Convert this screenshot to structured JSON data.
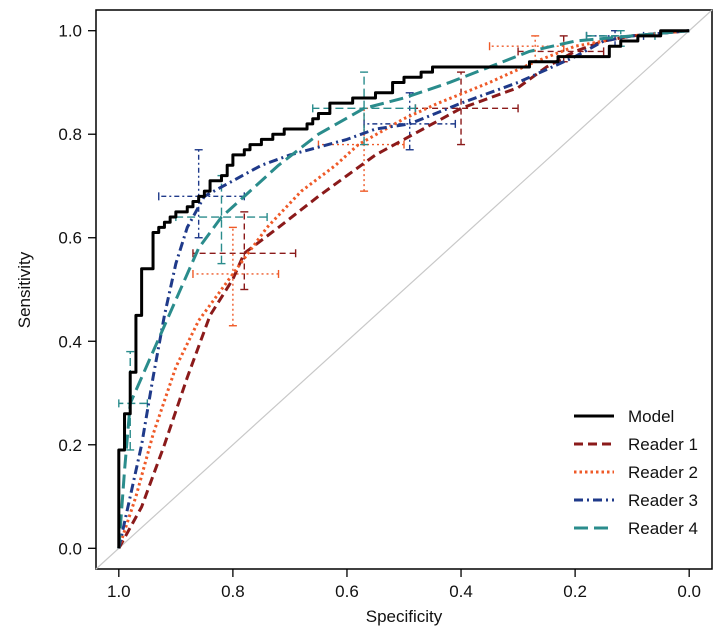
{
  "chart_data": {
    "type": "line",
    "title": "",
    "xlabel": "Specificity",
    "ylabel": "Sensitivity",
    "xlim": [
      1.04,
      -0.04
    ],
    "ylim": [
      -0.04,
      1.04
    ],
    "x_reversed": true,
    "xticks": [
      1.0,
      0.8,
      0.6,
      0.4,
      0.2,
      0.0
    ],
    "xtick_labels": [
      "1.0",
      "0.8",
      "0.6",
      "0.4",
      "0.2",
      "0.0"
    ],
    "yticks": [
      0.0,
      0.2,
      0.4,
      0.6,
      0.8,
      1.0
    ],
    "ytick_labels": [
      "0.0",
      "0.2",
      "0.4",
      "0.6",
      "0.8",
      "1.0"
    ],
    "diagonal": {
      "color": "#c8c8c8",
      "points": [
        [
          1.04,
          -0.04
        ],
        [
          -0.04,
          1.04
        ]
      ]
    },
    "legend_position": "bottom-right",
    "series": [
      {
        "name": "Model",
        "color": "#000000",
        "style": "solid",
        "width": 3,
        "step": true,
        "points": [
          [
            1.0,
            0.0
          ],
          [
            1.0,
            0.19
          ],
          [
            0.99,
            0.19
          ],
          [
            0.99,
            0.26
          ],
          [
            0.98,
            0.26
          ],
          [
            0.98,
            0.34
          ],
          [
            0.97,
            0.34
          ],
          [
            0.97,
            0.45
          ],
          [
            0.96,
            0.45
          ],
          [
            0.96,
            0.54
          ],
          [
            0.94,
            0.54
          ],
          [
            0.94,
            0.61
          ],
          [
            0.93,
            0.61
          ],
          [
            0.93,
            0.62
          ],
          [
            0.92,
            0.62
          ],
          [
            0.92,
            0.63
          ],
          [
            0.91,
            0.63
          ],
          [
            0.91,
            0.64
          ],
          [
            0.9,
            0.64
          ],
          [
            0.9,
            0.65
          ],
          [
            0.88,
            0.65
          ],
          [
            0.88,
            0.66
          ],
          [
            0.87,
            0.66
          ],
          [
            0.87,
            0.67
          ],
          [
            0.86,
            0.67
          ],
          [
            0.86,
            0.68
          ],
          [
            0.85,
            0.68
          ],
          [
            0.85,
            0.69
          ],
          [
            0.84,
            0.69
          ],
          [
            0.84,
            0.71
          ],
          [
            0.82,
            0.71
          ],
          [
            0.82,
            0.72
          ],
          [
            0.81,
            0.72
          ],
          [
            0.81,
            0.74
          ],
          [
            0.8,
            0.74
          ],
          [
            0.8,
            0.76
          ],
          [
            0.78,
            0.76
          ],
          [
            0.78,
            0.77
          ],
          [
            0.77,
            0.77
          ],
          [
            0.77,
            0.78
          ],
          [
            0.75,
            0.78
          ],
          [
            0.75,
            0.79
          ],
          [
            0.73,
            0.79
          ],
          [
            0.73,
            0.8
          ],
          [
            0.71,
            0.8
          ],
          [
            0.71,
            0.81
          ],
          [
            0.67,
            0.81
          ],
          [
            0.67,
            0.82
          ],
          [
            0.66,
            0.82
          ],
          [
            0.66,
            0.83
          ],
          [
            0.65,
            0.83
          ],
          [
            0.65,
            0.84
          ],
          [
            0.63,
            0.84
          ],
          [
            0.63,
            0.86
          ],
          [
            0.59,
            0.86
          ],
          [
            0.59,
            0.87
          ],
          [
            0.55,
            0.87
          ],
          [
            0.55,
            0.88
          ],
          [
            0.52,
            0.88
          ],
          [
            0.52,
            0.9
          ],
          [
            0.5,
            0.9
          ],
          [
            0.5,
            0.91
          ],
          [
            0.47,
            0.91
          ],
          [
            0.47,
            0.92
          ],
          [
            0.45,
            0.92
          ],
          [
            0.45,
            0.93
          ],
          [
            0.28,
            0.93
          ],
          [
            0.28,
            0.94
          ],
          [
            0.23,
            0.94
          ],
          [
            0.23,
            0.95
          ],
          [
            0.14,
            0.95
          ],
          [
            0.14,
            0.97
          ],
          [
            0.12,
            0.97
          ],
          [
            0.12,
            0.98
          ],
          [
            0.09,
            0.98
          ],
          [
            0.09,
            0.99
          ],
          [
            0.05,
            0.99
          ],
          [
            0.05,
            1.0
          ],
          [
            0.0,
            1.0
          ]
        ]
      },
      {
        "name": "Reader 1",
        "color": "#8b1a1a",
        "style": "dashed",
        "width": 3,
        "points": [
          [
            1.0,
            0.0
          ],
          [
            0.96,
            0.08
          ],
          [
            0.92,
            0.2
          ],
          [
            0.88,
            0.33
          ],
          [
            0.84,
            0.45
          ],
          [
            0.8,
            0.52
          ],
          [
            0.78,
            0.57
          ],
          [
            0.72,
            0.62
          ],
          [
            0.65,
            0.68
          ],
          [
            0.6,
            0.72
          ],
          [
            0.55,
            0.76
          ],
          [
            0.5,
            0.79
          ],
          [
            0.45,
            0.82
          ],
          [
            0.4,
            0.85
          ],
          [
            0.35,
            0.87
          ],
          [
            0.3,
            0.89
          ],
          [
            0.25,
            0.93
          ],
          [
            0.2,
            0.96
          ],
          [
            0.15,
            0.98
          ],
          [
            0.1,
            0.99
          ],
          [
            0.0,
            1.0
          ]
        ],
        "points_ci": [
          {
            "x": 0.78,
            "y": 0.57,
            "x_lo": 0.69,
            "x_hi": 0.87,
            "y_lo": 0.5,
            "y_hi": 0.65
          },
          {
            "x": 0.4,
            "y": 0.85,
            "x_lo": 0.3,
            "x_hi": 0.48,
            "y_lo": 0.78,
            "y_hi": 0.92
          },
          {
            "x": 0.22,
            "y": 0.96,
            "x_lo": 0.15,
            "x_hi": 0.3,
            "y_lo": 0.94,
            "y_hi": 0.99
          }
        ]
      },
      {
        "name": "Reader 2",
        "color": "#ef5a28",
        "style": "dotted",
        "width": 3,
        "points": [
          [
            1.0,
            0.0
          ],
          [
            0.97,
            0.1
          ],
          [
            0.94,
            0.22
          ],
          [
            0.9,
            0.35
          ],
          [
            0.86,
            0.44
          ],
          [
            0.82,
            0.5
          ],
          [
            0.8,
            0.53
          ],
          [
            0.74,
            0.62
          ],
          [
            0.68,
            0.69
          ],
          [
            0.62,
            0.74
          ],
          [
            0.58,
            0.78
          ],
          [
            0.5,
            0.83
          ],
          [
            0.44,
            0.86
          ],
          [
            0.35,
            0.9
          ],
          [
            0.27,
            0.94
          ],
          [
            0.2,
            0.97
          ],
          [
            0.1,
            0.99
          ],
          [
            0.0,
            1.0
          ]
        ],
        "points_ci": [
          {
            "x": 0.8,
            "y": 0.53,
            "x_lo": 0.72,
            "x_hi": 0.87,
            "y_lo": 0.43,
            "y_hi": 0.62
          },
          {
            "x": 0.57,
            "y": 0.78,
            "x_lo": 0.5,
            "x_hi": 0.65,
            "y_lo": 0.69,
            "y_hi": 0.85
          },
          {
            "x": 0.27,
            "y": 0.97,
            "x_lo": 0.22,
            "x_hi": 0.35,
            "y_lo": 0.94,
            "y_hi": 0.99
          }
        ]
      },
      {
        "name": "Reader 3",
        "color": "#1f3a8a",
        "style": "dashdot",
        "width": 3,
        "points": [
          [
            1.0,
            0.0
          ],
          [
            0.98,
            0.1
          ],
          [
            0.96,
            0.2
          ],
          [
            0.94,
            0.33
          ],
          [
            0.92,
            0.45
          ],
          [
            0.9,
            0.55
          ],
          [
            0.88,
            0.62
          ],
          [
            0.85,
            0.68
          ],
          [
            0.8,
            0.71
          ],
          [
            0.75,
            0.74
          ],
          [
            0.7,
            0.76
          ],
          [
            0.6,
            0.79
          ],
          [
            0.55,
            0.81
          ],
          [
            0.49,
            0.82
          ],
          [
            0.4,
            0.86
          ],
          [
            0.3,
            0.9
          ],
          [
            0.2,
            0.95
          ],
          [
            0.15,
            0.98
          ],
          [
            0.1,
            0.99
          ],
          [
            0.0,
            1.0
          ]
        ],
        "points_ci": [
          {
            "x": 0.86,
            "y": 0.68,
            "x_lo": 0.78,
            "x_hi": 0.93,
            "y_lo": 0.6,
            "y_hi": 0.77
          },
          {
            "x": 0.49,
            "y": 0.82,
            "x_lo": 0.41,
            "x_hi": 0.57,
            "y_lo": 0.77,
            "y_hi": 0.88
          },
          {
            "x": 0.13,
            "y": 0.99,
            "x_lo": 0.08,
            "x_hi": 0.18,
            "y_lo": 0.97,
            "y_hi": 1.0
          }
        ]
      },
      {
        "name": "Reader 4",
        "color": "#2a8c8c",
        "style": "longdash",
        "width": 3,
        "points": [
          [
            1.0,
            0.0
          ],
          [
            0.99,
            0.15
          ],
          [
            0.98,
            0.28
          ],
          [
            0.94,
            0.38
          ],
          [
            0.9,
            0.48
          ],
          [
            0.86,
            0.58
          ],
          [
            0.82,
            0.64
          ],
          [
            0.78,
            0.68
          ],
          [
            0.72,
            0.74
          ],
          [
            0.65,
            0.8
          ],
          [
            0.57,
            0.85
          ],
          [
            0.5,
            0.87
          ],
          [
            0.42,
            0.9
          ],
          [
            0.35,
            0.93
          ],
          [
            0.28,
            0.96
          ],
          [
            0.2,
            0.98
          ],
          [
            0.1,
            0.99
          ],
          [
            0.0,
            1.0
          ]
        ],
        "points_ci": [
          {
            "x": 0.98,
            "y": 0.28,
            "x_lo": 0.95,
            "x_hi": 1.0,
            "y_lo": 0.19,
            "y_hi": 0.38
          },
          {
            "x": 0.82,
            "y": 0.64,
            "x_lo": 0.74,
            "x_hi": 0.9,
            "y_lo": 0.55,
            "y_hi": 0.72
          },
          {
            "x": 0.57,
            "y": 0.85,
            "x_lo": 0.48,
            "x_hi": 0.66,
            "y_lo": 0.78,
            "y_hi": 0.92
          },
          {
            "x": 0.12,
            "y": 0.99,
            "x_lo": 0.06,
            "x_hi": 0.18,
            "y_lo": 0.97,
            "y_hi": 1.0
          }
        ]
      }
    ]
  }
}
